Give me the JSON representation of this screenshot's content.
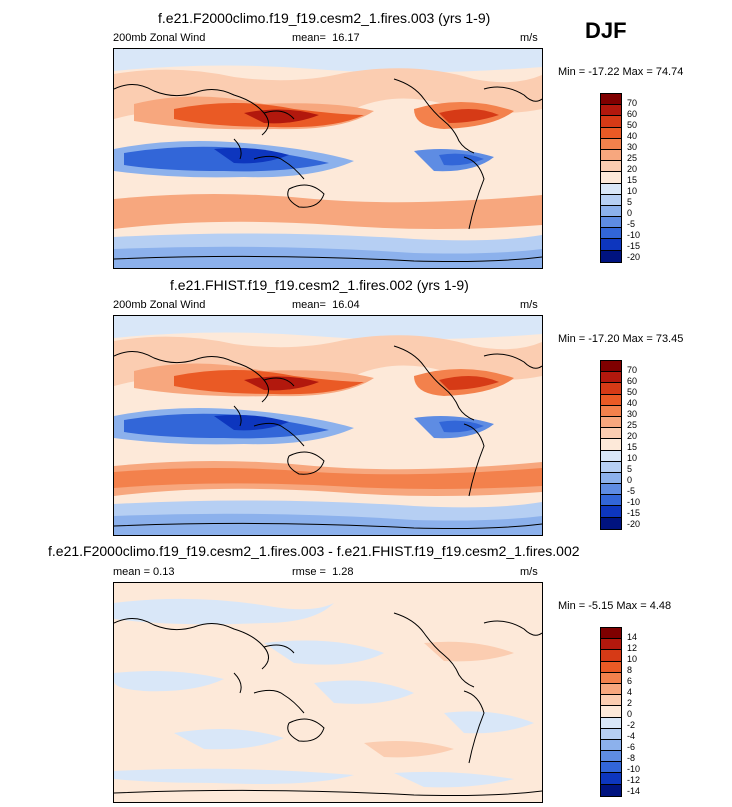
{
  "season": "DJF",
  "panels": [
    {
      "title": "f.e21.F2000climo.f19_f19.cesm2_1.fires.003 (yrs 1-9)",
      "left_label": "200mb Zonal Wind",
      "stat_label": "mean=",
      "stat_value": "16.17",
      "units": "m/s",
      "minmax": "Min = -17.22 Max =  74.74"
    },
    {
      "title": "f.e21.FHIST.f19_f19.cesm2_1.fires.002 (yrs 1-9)",
      "left_label": "200mb Zonal Wind",
      "stat_label": "mean=",
      "stat_value": "16.04",
      "units": "m/s",
      "minmax": "Min = -17.20 Max =  73.45"
    },
    {
      "title": "f.e21.F2000climo.f19_f19.cesm2_1.fires.003 - f.e21.FHIST.f19_f19.cesm2_1.fires.002",
      "left_label": "mean =  0.13",
      "stat_label": "rmse =",
      "stat_value": "1.28",
      "units": "m/s",
      "minmax": "Min =  -5.15 Max =  4.48"
    }
  ],
  "chart_data": [
    {
      "type": "heatmap",
      "title": "f.e21.F2000climo.f19_f19.cesm2_1.fires.003 (yrs 1-9)",
      "variable": "200mb Zonal Wind",
      "units": "m/s",
      "mean": 16.17,
      "min": -17.22,
      "max": 74.74,
      "colorbar_labels": [
        "70",
        "60",
        "50",
        "40",
        "30",
        "25",
        "20",
        "15",
        "10",
        "5",
        "0",
        "-5",
        "-10",
        "-15",
        "-20"
      ]
    },
    {
      "type": "heatmap",
      "title": "f.e21.FHIST.f19_f19.cesm2_1.fires.002 (yrs 1-9)",
      "variable": "200mb Zonal Wind",
      "units": "m/s",
      "mean": 16.04,
      "min": -17.2,
      "max": 73.45,
      "colorbar_labels": [
        "70",
        "60",
        "50",
        "40",
        "30",
        "25",
        "20",
        "15",
        "10",
        "5",
        "0",
        "-5",
        "-10",
        "-15",
        "-20"
      ]
    },
    {
      "type": "heatmap",
      "title": "f.e21.F2000climo.f19_f19.cesm2_1.fires.003 - f.e21.FHIST.f19_f19.cesm2_1.fires.002",
      "units": "m/s",
      "mean": 0.13,
      "rmse": 1.28,
      "min": -5.15,
      "max": 4.48,
      "colorbar_labels": [
        "14",
        "12",
        "10",
        "8",
        "6",
        "4",
        "2",
        "0",
        "-2",
        "-4",
        "-6",
        "-8",
        "-10",
        "-12",
        "-14"
      ]
    }
  ],
  "colors": {
    "abs_scale": [
      "#7f0000",
      "#b2180d",
      "#d63a16",
      "#ea5a25",
      "#f3814c",
      "#f7a77e",
      "#fbcdb1",
      "#fde9d9",
      "#d9e7f8",
      "#b6cff3",
      "#8cb1ec",
      "#5e8ce3",
      "#3266d8",
      "#0d36be",
      "#00137f"
    ],
    "diff_scale": [
      "#7f0000",
      "#b2180d",
      "#d63a16",
      "#ea5a25",
      "#f3814c",
      "#f7a77e",
      "#fbcdb1",
      "#fde9d9",
      "#d9e7f8",
      "#b6cff3",
      "#8cb1ec",
      "#5e8ce3",
      "#3266d8",
      "#0d36be",
      "#00137f"
    ]
  }
}
